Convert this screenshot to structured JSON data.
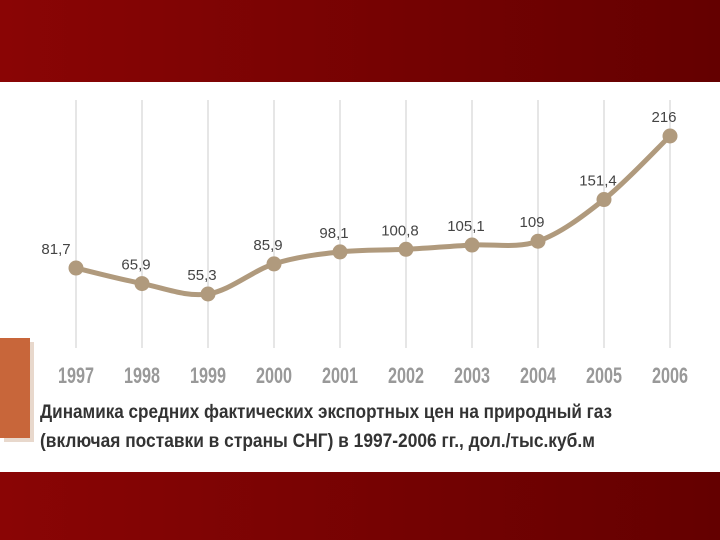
{
  "chart_data": {
    "type": "line",
    "caption": [
      "Динамика средних фактических экспортных цен на природный газ",
      "(включая поставки в страны СНГ) в 1997-2006 гг., дол./тыс.куб.м"
    ],
    "categories": [
      "1997",
      "1998",
      "1999",
      "2000",
      "2001",
      "2002",
      "2003",
      "2004",
      "2005",
      "2006"
    ],
    "values": [
      81.7,
      65.9,
      55.3,
      85.9,
      98.1,
      100.8,
      105.1,
      109,
      151.4,
      216
    ],
    "value_labels": [
      "81,7",
      "65,9",
      "55,3",
      "85,9",
      "98,1",
      "100,8",
      "105,1",
      "109",
      "151,4",
      "216"
    ],
    "color": "#b09a7d",
    "grid": true
  }
}
